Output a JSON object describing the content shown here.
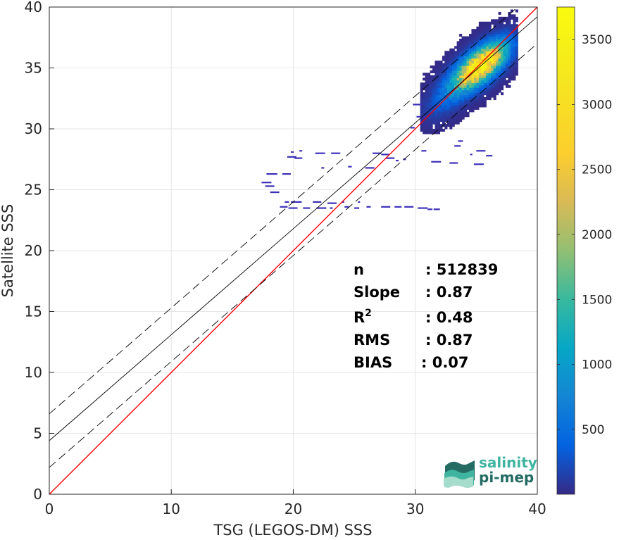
{
  "chart_data": {
    "type": "heatmap",
    "xlabel": "TSG (LEGOS-DM) SSS",
    "ylabel": "Satellite SSS",
    "xlim": [
      0,
      40
    ],
    "ylim": [
      0,
      40
    ],
    "xticks": [
      "0",
      "10",
      "20",
      "30",
      "40"
    ],
    "yticks": [
      "0",
      "5",
      "10",
      "15",
      "20",
      "25",
      "30",
      "35",
      "40"
    ],
    "grid": true,
    "colorbar": {
      "range": [
        1,
        3750
      ],
      "ticks": [
        "500",
        "1000",
        "1500",
        "2000",
        "2500",
        "3000",
        "3500"
      ],
      "colormap": "parula"
    },
    "density_clusters": [
      {
        "x": 35.2,
        "y": 35.2,
        "sx": 1.6,
        "sy": 1.5,
        "peak": 3300
      },
      {
        "x": 34.0,
        "y": 34.2,
        "sx": 1.8,
        "sy": 1.8,
        "peak": 600
      },
      {
        "x": 32.5,
        "y": 32.0,
        "sx": 1.2,
        "sy": 1.5,
        "peak": 250
      },
      {
        "x": 36.5,
        "y": 36.8,
        "sx": 1.0,
        "sy": 1.0,
        "peak": 300
      }
    ],
    "sparse_points": [
      [
        19.8,
        28.1
      ],
      [
        20.5,
        28.2
      ],
      [
        21.8,
        28.0
      ],
      [
        23.1,
        28.0
      ],
      [
        26.5,
        28.0
      ],
      [
        27.2,
        27.9
      ],
      [
        19.5,
        27.7
      ],
      [
        20.1,
        27.6
      ],
      [
        27.6,
        27.6
      ],
      [
        28.4,
        27.4
      ],
      [
        29.0,
        27.5
      ],
      [
        22.3,
        26.8
      ],
      [
        24.5,
        26.9
      ],
      [
        25.9,
        26.8
      ],
      [
        17.8,
        26.3
      ],
      [
        18.4,
        26.3
      ],
      [
        19.1,
        26.3
      ],
      [
        17.4,
        25.6
      ],
      [
        17.7,
        25.3
      ],
      [
        18.1,
        24.8
      ],
      [
        19.3,
        24.0
      ],
      [
        19.8,
        24.0
      ],
      [
        20.4,
        24.0
      ],
      [
        21.6,
        24.0
      ],
      [
        22.8,
        23.9
      ],
      [
        24.0,
        24.0
      ],
      [
        25.3,
        24.0
      ],
      [
        18.9,
        23.6
      ],
      [
        19.6,
        23.5
      ],
      [
        20.8,
        23.5
      ],
      [
        21.9,
        23.5
      ],
      [
        23.0,
        23.5
      ],
      [
        24.2,
        23.6
      ],
      [
        25.0,
        23.5
      ],
      [
        26.0,
        23.6
      ],
      [
        27.2,
        23.6
      ],
      [
        28.3,
        23.6
      ],
      [
        29.1,
        23.6
      ],
      [
        30.2,
        23.5
      ],
      [
        31.0,
        23.4
      ],
      [
        31.5,
        23.4
      ],
      [
        30.5,
        28.2
      ],
      [
        31.3,
        27.3
      ],
      [
        33.5,
        29.0
      ],
      [
        34.5,
        27.9
      ],
      [
        32.8,
        27.2
      ],
      [
        35.0,
        28.2
      ],
      [
        29.6,
        30.1
      ],
      [
        30.1,
        31.0
      ],
      [
        29.8,
        32.0
      ],
      [
        35.8,
        27.8
      ],
      [
        34.8,
        27.1
      ],
      [
        33.2,
        28.6
      ]
    ],
    "lines": [
      {
        "name": "identity",
        "color": "#ff0000",
        "slope": 1,
        "intercept": 0
      },
      {
        "name": "fit",
        "color": "#000000",
        "slope": 0.87,
        "intercept": 4.4
      },
      {
        "name": "fit_upper",
        "color": "#000000",
        "dash": true,
        "slope": 0.87,
        "intercept": 6.6
      },
      {
        "name": "fit_lower",
        "color": "#000000",
        "dash": true,
        "slope": 0.87,
        "intercept": 2.2
      }
    ],
    "stats": [
      {
        "label": "n",
        "value": ": 512839"
      },
      {
        "label": "Slope",
        "value": ": 0.87"
      },
      {
        "label": "R",
        "sup": "2",
        "value": ": 0.48"
      },
      {
        "label": "RMS",
        "value": ": 0.87"
      },
      {
        "label": "BIAS",
        "value": ": 0.07"
      }
    ]
  },
  "logo": {
    "line1": "salinity",
    "line2": "pi-mep"
  }
}
